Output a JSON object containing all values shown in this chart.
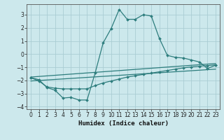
{
  "xlabel": "Humidex (Indice chaleur)",
  "bg_color": "#cce8ec",
  "line_color": "#2d7d7d",
  "grid_color": "#aacdd4",
  "xlim": [
    -0.5,
    23.5
  ],
  "ylim": [
    -4.2,
    3.8
  ],
  "yticks": [
    -4,
    -3,
    -2,
    -1,
    0,
    1,
    2,
    3
  ],
  "xticks": [
    0,
    1,
    2,
    3,
    4,
    5,
    6,
    7,
    8,
    9,
    10,
    11,
    12,
    13,
    14,
    15,
    16,
    17,
    18,
    19,
    20,
    21,
    22,
    23
  ],
  "main_x": [
    0,
    1,
    2,
    3,
    4,
    5,
    6,
    7,
    8,
    9,
    10,
    11,
    12,
    13,
    14,
    15,
    16,
    17,
    18,
    19,
    20,
    21,
    22,
    23
  ],
  "main_y": [
    -1.8,
    -1.95,
    -2.55,
    -2.75,
    -3.35,
    -3.3,
    -3.5,
    -3.5,
    -1.45,
    0.85,
    1.95,
    3.4,
    2.65,
    2.65,
    3.0,
    2.9,
    1.2,
    -0.1,
    -0.25,
    -0.3,
    -0.45,
    -0.6,
    -1.1,
    -0.85
  ],
  "line2_x": [
    0,
    1,
    2,
    3,
    4,
    5,
    6,
    7,
    8,
    9,
    10,
    11,
    12,
    13,
    14,
    15,
    16,
    17,
    18,
    19,
    20,
    21,
    22,
    23
  ],
  "line2_y": [
    -1.8,
    -2.05,
    -2.5,
    -2.6,
    -2.65,
    -2.65,
    -2.65,
    -2.65,
    -2.4,
    -2.2,
    -2.05,
    -1.9,
    -1.75,
    -1.65,
    -1.55,
    -1.45,
    -1.35,
    -1.25,
    -1.15,
    -1.05,
    -0.98,
    -0.92,
    -0.88,
    -0.82
  ],
  "line3_x": [
    0,
    23
  ],
  "line3_y": [
    -1.75,
    -0.72
  ],
  "line4_x": [
    0,
    23
  ],
  "line4_y": [
    -2.05,
    -1.15
  ]
}
